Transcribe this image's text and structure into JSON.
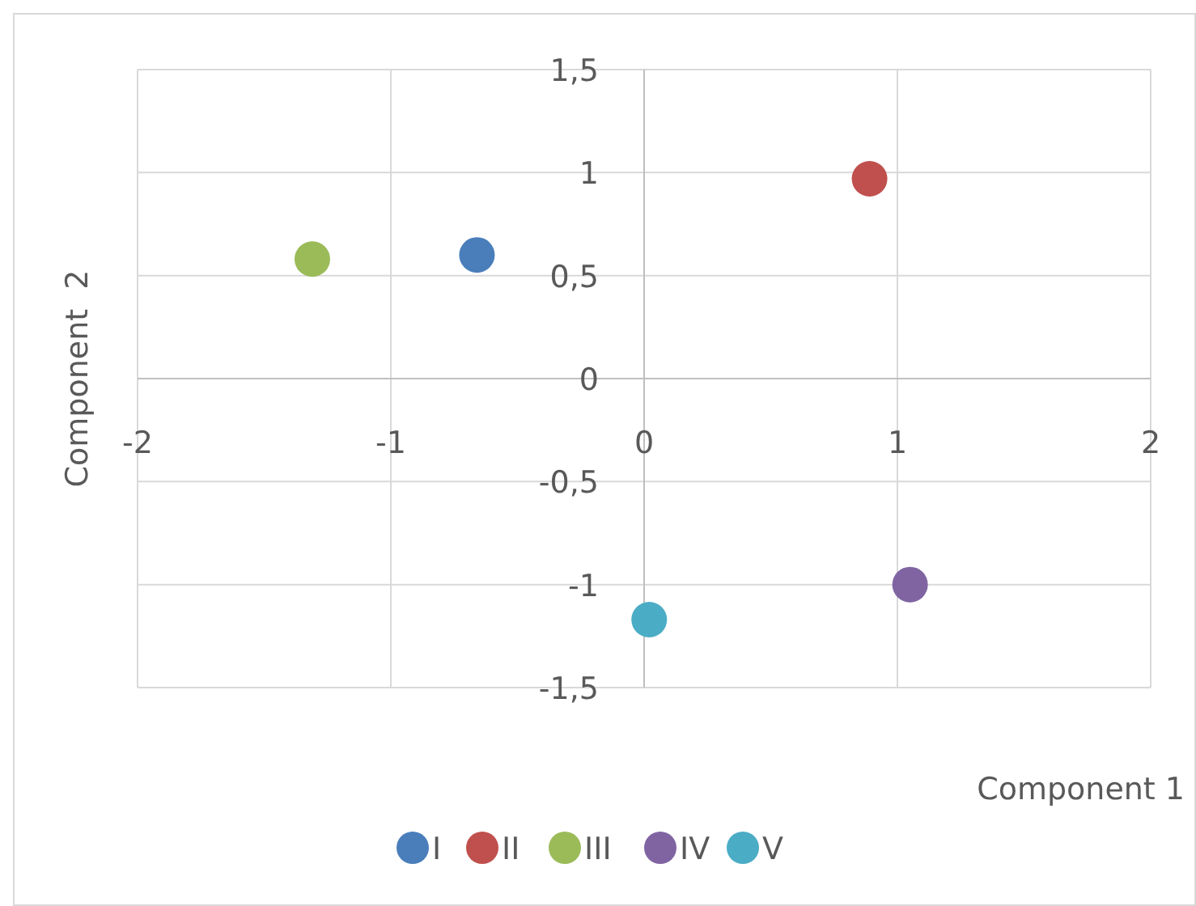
{
  "chart_data": {
    "type": "scatter",
    "xlabel": "Component 1",
    "ylabel": "Component  2",
    "xlim": [
      -2,
      2
    ],
    "xticks": [
      -2,
      -1,
      0,
      1,
      2
    ],
    "ylim": [
      -1.5,
      1.5
    ],
    "yticks": [
      {
        "value": -1.5,
        "label": "-1,5"
      },
      -1,
      {
        "value": -0.5,
        "label": "-0,5"
      },
      0,
      {
        "value": 0.5,
        "label": "0,5"
      },
      1,
      {
        "value": 1.5,
        "label": "1,5"
      }
    ],
    "grid": true,
    "legend": "bottom",
    "marker": "circle",
    "series": [
      {
        "name": "I",
        "color": "#4a7ebb",
        "x": [
          -0.66
        ],
        "values": [
          0.6
        ]
      },
      {
        "name": "II",
        "color": "#c0504d",
        "x": [
          0.89
        ],
        "values": [
          0.97
        ]
      },
      {
        "name": "III",
        "color": "#9bbb59",
        "x": [
          -1.31
        ],
        "values": [
          0.58
        ]
      },
      {
        "name": "IV",
        "color": "#8064a2",
        "x": [
          1.05
        ],
        "values": [
          -1.0
        ]
      },
      {
        "name": "V",
        "color": "#4bacc6",
        "x": [
          0.02
        ],
        "values": [
          -1.17
        ]
      }
    ]
  }
}
